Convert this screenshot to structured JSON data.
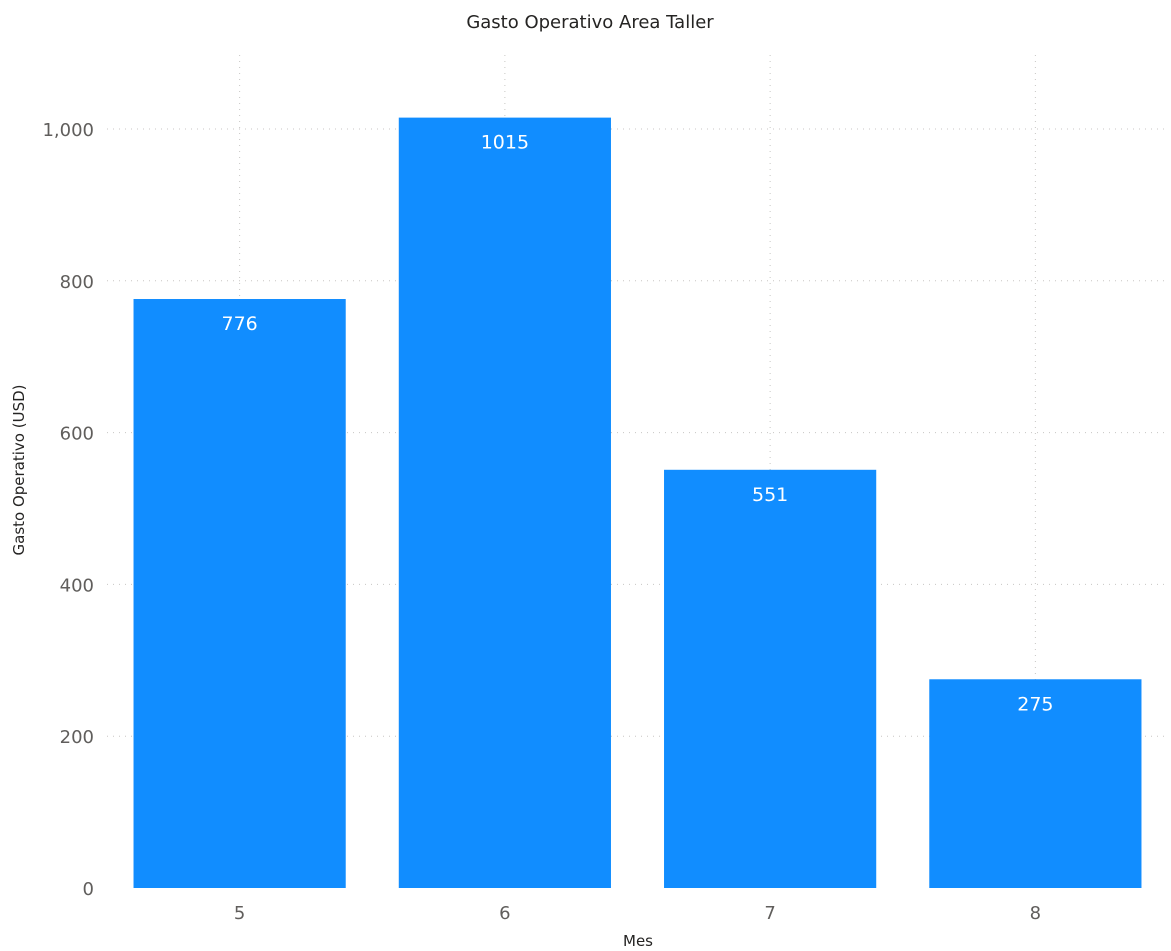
{
  "chart_data": {
    "type": "bar",
    "title": "Gasto Operativo Area Taller",
    "xlabel": "Mes",
    "ylabel": "Gasto Operativo (USD)",
    "categories": [
      "5",
      "6",
      "7",
      "8"
    ],
    "values": [
      776,
      1015,
      551,
      275
    ],
    "data_labels": [
      "776",
      "1015",
      "551",
      "275"
    ],
    "yticks": [
      0,
      200,
      400,
      600,
      800,
      1000
    ],
    "ytick_labels": [
      "0",
      "200",
      "400",
      "600",
      "800",
      "1,000"
    ],
    "ylim": [
      0,
      1000
    ],
    "grid": true,
    "bar_color": "#118dff"
  }
}
